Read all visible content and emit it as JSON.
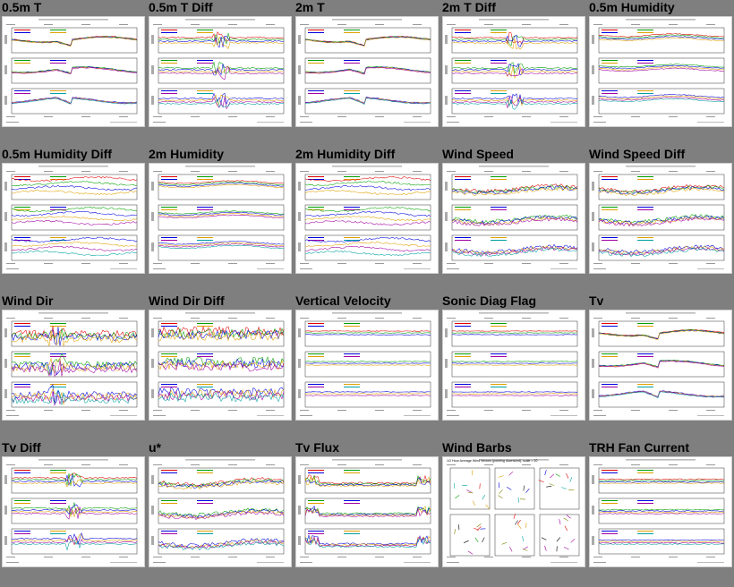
{
  "panels": [
    {
      "title": "0.5m T",
      "kind": "temp"
    },
    {
      "title": "0.5m T Diff",
      "kind": "diff"
    },
    {
      "title": "2m T",
      "kind": "temp"
    },
    {
      "title": "2m T Diff",
      "kind": "diff"
    },
    {
      "title": "0.5m Humidity",
      "kind": "humid"
    },
    {
      "title": "0.5m Humidity Diff",
      "kind": "humid-diff"
    },
    {
      "title": "2m Humidity",
      "kind": "humid"
    },
    {
      "title": "2m Humidity Diff",
      "kind": "humid-diff"
    },
    {
      "title": "Wind Speed",
      "kind": "noisy"
    },
    {
      "title": "Wind Speed Diff",
      "kind": "noisy"
    },
    {
      "title": "Wind Dir",
      "kind": "dir"
    },
    {
      "title": "Wind Dir Diff",
      "kind": "dir-diff"
    },
    {
      "title": "Vertical Velocity",
      "kind": "flat"
    },
    {
      "title": "Sonic Diag Flag",
      "kind": "flat"
    },
    {
      "title": "Tv",
      "kind": "temp"
    },
    {
      "title": "Tv Diff",
      "kind": "diff"
    },
    {
      "title": "u*",
      "kind": "noisy"
    },
    {
      "title": "Tv Flux",
      "kind": "flux"
    },
    {
      "title": "Wind Barbs",
      "kind": "barbs",
      "header": "1/2 Hour Average Wind Vectors (pointing downwind), scale = 20"
    },
    {
      "title": "TRH Fan Current",
      "kind": "fan"
    }
  ],
  "colors": {
    "background": "#7f7f7f",
    "series": [
      "#e00000",
      "#00a000",
      "#0000e0",
      "#e0a000",
      "#a000a0",
      "#00a0a0",
      "#000000",
      "#808000"
    ]
  }
}
